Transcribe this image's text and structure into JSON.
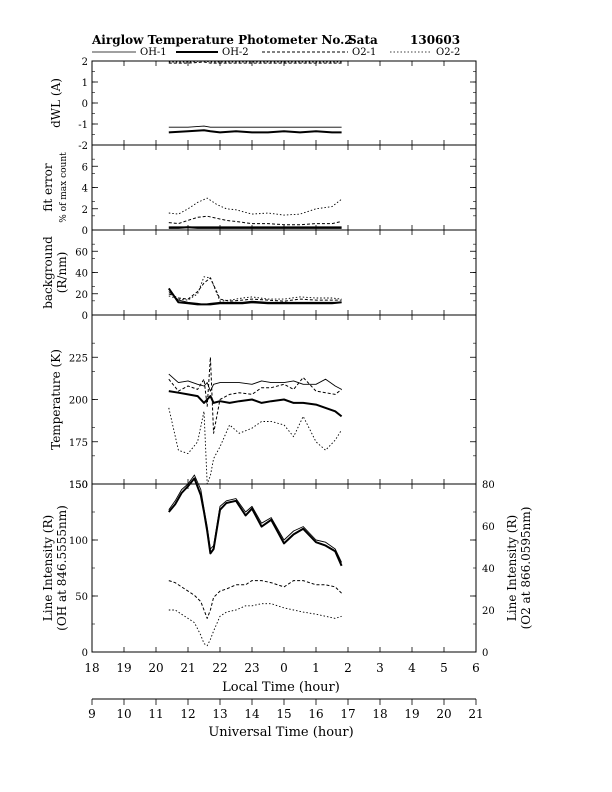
{
  "header": {
    "title": "Airglow Temperature Photometer No.2",
    "site": "Sata",
    "date": "130603"
  },
  "legend": [
    {
      "name": "OH-1",
      "style": "solid-thin"
    },
    {
      "name": "OH-2",
      "style": "solid-thick"
    },
    {
      "name": "O2-1",
      "style": "dashed"
    },
    {
      "name": "O2-2",
      "style": "dotted"
    }
  ],
  "axes": {
    "local_time_label": "Local Time (hour)",
    "universal_time_label": "Universal Time (hour)",
    "local_ticks": [
      "18",
      "19",
      "20",
      "21",
      "22",
      "23",
      "0",
      "1",
      "2",
      "3",
      "4",
      "5",
      "6"
    ],
    "universal_ticks": [
      "9",
      "10",
      "11",
      "12",
      "13",
      "14",
      "15",
      "16",
      "17",
      "18",
      "19",
      "20",
      "21"
    ]
  },
  "chart_data": [
    {
      "type": "line",
      "panel": "dwl",
      "ylabel": "dWL (A)",
      "ylim": [
        -2,
        2
      ],
      "yticks": [
        "2",
        "1",
        "0",
        "-1",
        "-2"
      ],
      "x": [
        20.4,
        21.0,
        21.5,
        21.7,
        22.0,
        22.5,
        23.0,
        23.5,
        0.0,
        0.5,
        1.0,
        1.5,
        1.8
      ],
      "series": [
        {
          "name": "OH-1",
          "values": [
            -1.15,
            -1.15,
            -1.1,
            -1.15,
            -1.15,
            -1.15,
            -1.15,
            -1.15,
            -1.15,
            -1.15,
            -1.15,
            -1.15,
            -1.15
          ]
        },
        {
          "name": "OH-2",
          "values": [
            -1.4,
            -1.35,
            -1.3,
            -1.35,
            -1.4,
            -1.35,
            -1.4,
            -1.4,
            -1.35,
            -1.4,
            -1.35,
            -1.4,
            -1.4
          ]
        },
        {
          "name": "O2-1",
          "values": [
            1.9,
            1.9,
            1.95,
            1.9,
            1.9,
            1.9,
            1.9,
            1.9,
            1.9,
            1.9,
            1.9,
            1.9,
            1.9
          ]
        },
        {
          "name": "O2-2",
          "values": [
            1.95,
            1.95,
            2.0,
            1.95,
            1.95,
            1.95,
            1.95,
            1.95,
            1.95,
            1.95,
            1.95,
            1.95,
            1.95
          ]
        }
      ]
    },
    {
      "type": "line",
      "panel": "fit_error",
      "ylabel": "fit error",
      "ylabel2": "% of max count",
      "ylim": [
        0,
        8
      ],
      "yticks": [
        "6",
        "4",
        "2",
        "0"
      ],
      "x": [
        20.4,
        20.7,
        21.0,
        21.3,
        21.6,
        21.9,
        22.2,
        22.5,
        23.0,
        23.5,
        0.0,
        0.5,
        1.0,
        1.5,
        1.8
      ],
      "series": [
        {
          "name": "OH-1",
          "values": [
            0.3,
            0.3,
            0.3,
            0.3,
            0.3,
            0.3,
            0.3,
            0.3,
            0.3,
            0.3,
            0.3,
            0.3,
            0.3,
            0.3,
            0.3
          ]
        },
        {
          "name": "OH-2",
          "values": [
            0.2,
            0.2,
            0.25,
            0.2,
            0.2,
            0.2,
            0.2,
            0.2,
            0.2,
            0.2,
            0.2,
            0.2,
            0.2,
            0.2,
            0.2
          ]
        },
        {
          "name": "O2-1",
          "values": [
            0.7,
            0.6,
            0.9,
            1.2,
            1.3,
            1.1,
            0.9,
            0.8,
            0.6,
            0.6,
            0.5,
            0.5,
            0.6,
            0.6,
            0.8
          ]
        },
        {
          "name": "O2-2",
          "values": [
            1.6,
            1.5,
            2.0,
            2.6,
            3.0,
            2.4,
            2.0,
            1.9,
            1.5,
            1.6,
            1.4,
            1.5,
            2.0,
            2.2,
            2.9
          ]
        }
      ]
    },
    {
      "type": "line",
      "panel": "background",
      "ylabel": "background",
      "ylabel2": "(R/nm)",
      "ylim": [
        0,
        80
      ],
      "yticks": [
        "60",
        "40",
        "20",
        "0"
      ],
      "x": [
        20.4,
        20.7,
        21.0,
        21.3,
        21.5,
        21.7,
        22.0,
        22.3,
        22.7,
        23.0,
        23.5,
        0.0,
        0.5,
        1.0,
        1.5,
        1.8
      ],
      "series": [
        {
          "name": "OH-1",
          "values": [
            22,
            14,
            12,
            11,
            10,
            11,
            12,
            12,
            12,
            13,
            12,
            12,
            12,
            12,
            12,
            12
          ]
        },
        {
          "name": "OH-2",
          "values": [
            25,
            12,
            11,
            10,
            10,
            10,
            11,
            11,
            11,
            12,
            11,
            11,
            11,
            11,
            11,
            12
          ]
        },
        {
          "name": "O2-1",
          "values": [
            20,
            16,
            15,
            22,
            30,
            35,
            15,
            13,
            14,
            15,
            14,
            13,
            15,
            14,
            14,
            14
          ]
        },
        {
          "name": "O2-2",
          "values": [
            18,
            15,
            14,
            20,
            36,
            35,
            13,
            14,
            16,
            17,
            15,
            15,
            17,
            16,
            16,
            15
          ]
        }
      ]
    },
    {
      "type": "line",
      "panel": "temperature",
      "ylabel": "Temperature (K)",
      "ylim": [
        150,
        250
      ],
      "yticks": [
        "225",
        "200",
        "175",
        "150"
      ],
      "x": [
        20.4,
        20.7,
        21.0,
        21.3,
        21.5,
        21.6,
        21.7,
        21.8,
        22.0,
        22.3,
        22.6,
        23.0,
        23.3,
        23.6,
        0.0,
        0.3,
        0.6,
        1.0,
        1.3,
        1.6,
        1.8
      ],
      "series": [
        {
          "name": "OH-1",
          "values": [
            215,
            210,
            211,
            209,
            208,
            210,
            205,
            209,
            210,
            210,
            210,
            209,
            211,
            210,
            210,
            211,
            209,
            209,
            212,
            208,
            206
          ]
        },
        {
          "name": "OH-2",
          "values": [
            205,
            204,
            203,
            202,
            198,
            200,
            202,
            198,
            199,
            198,
            199,
            200,
            198,
            199,
            200,
            198,
            198,
            197,
            195,
            193,
            190
          ]
        },
        {
          "name": "O2-1",
          "values": [
            212,
            205,
            208,
            206,
            212,
            196,
            225,
            180,
            200,
            203,
            204,
            203,
            207,
            207,
            209,
            206,
            213,
            205,
            204,
            203,
            206
          ]
        },
        {
          "name": "O2-2",
          "values": [
            195,
            170,
            168,
            175,
            193,
            150,
            155,
            165,
            172,
            185,
            180,
            183,
            187,
            187,
            185,
            178,
            190,
            175,
            170,
            176,
            182
          ]
        }
      ]
    },
    {
      "type": "line",
      "panel": "intensity",
      "ylabel": "Line Intensity (R)",
      "ylabel2": "(OH at 846.5555nm)",
      "ylim": [
        0,
        150
      ],
      "yticks": [
        "150",
        "100",
        "50",
        "0"
      ],
      "y2label": "Line Intensity (R)",
      "y2label2": "(O2 at 866.0595nm)",
      "y2lim": [
        0,
        80
      ],
      "y2ticks": [
        "80",
        "60",
        "40",
        "20",
        "0"
      ],
      "x": [
        20.4,
        20.6,
        20.8,
        21.0,
        21.2,
        21.4,
        21.5,
        21.6,
        21.7,
        21.8,
        22.0,
        22.2,
        22.5,
        22.8,
        23.0,
        23.3,
        23.6,
        0.0,
        0.3,
        0.6,
        1.0,
        1.3,
        1.6,
        1.8
      ],
      "series": [
        {
          "name": "OH-1",
          "values": [
            127,
            135,
            145,
            150,
            158,
            145,
            128,
            112,
            92,
            95,
            130,
            135,
            137,
            125,
            130,
            115,
            120,
            100,
            108,
            112,
            100,
            98,
            92,
            80
          ]
        },
        {
          "name": "OH-2",
          "values": [
            125,
            132,
            142,
            148,
            155,
            140,
            125,
            108,
            88,
            92,
            127,
            133,
            135,
            122,
            128,
            112,
            118,
            97,
            105,
            110,
            98,
            95,
            90,
            77
          ]
        },
        {
          "name": "O2-1",
          "axis": "right",
          "values": [
            34,
            33,
            31,
            29,
            27,
            24,
            20,
            16,
            20,
            26,
            29,
            30,
            32,
            32,
            34,
            34,
            33,
            31,
            34,
            34,
            32,
            32,
            31,
            28
          ]
        },
        {
          "name": "O2-2",
          "axis": "right",
          "values": [
            20,
            20,
            18,
            16,
            14,
            8,
            4,
            3,
            6,
            10,
            17,
            19,
            20,
            22,
            22,
            23,
            23,
            21,
            20,
            19,
            18,
            17,
            16,
            17
          ]
        }
      ]
    }
  ]
}
